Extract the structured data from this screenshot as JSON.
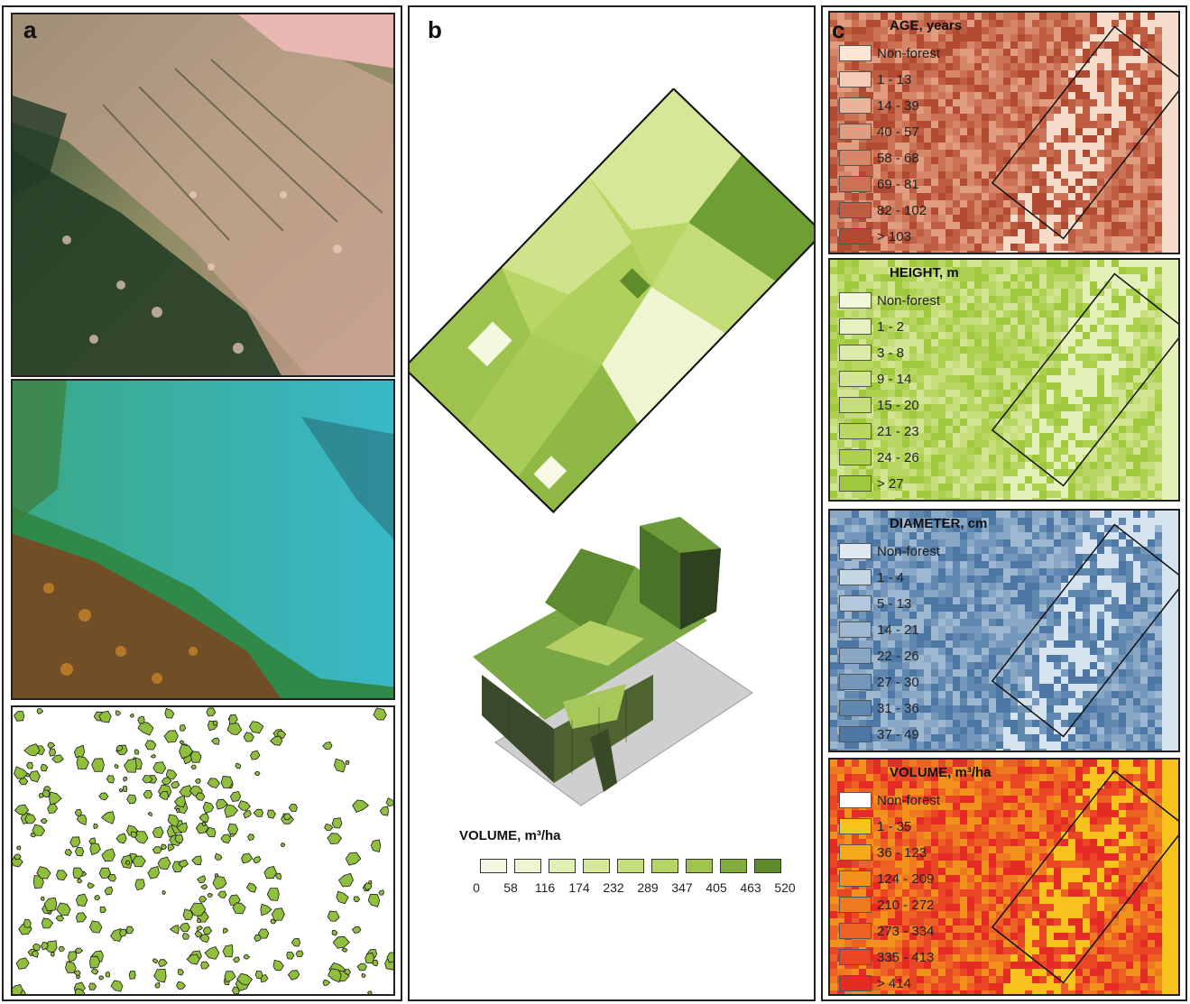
{
  "panels": {
    "a": {
      "label": "a"
    },
    "b": {
      "label": "b"
    },
    "c": {
      "label": "c"
    }
  },
  "volume_legend_b": {
    "title": "VOLUME, m³/ha",
    "ticks": [
      "0",
      "58",
      "116",
      "174",
      "232",
      "289",
      "347",
      "405",
      "463",
      "520"
    ],
    "colors": [
      "#f7f9e4",
      "#eef5cf",
      "#e2efb4",
      "#d5e899",
      "#c6df7d",
      "#b6d564",
      "#9ec44e",
      "#80ad3c",
      "#5e8c2a"
    ]
  },
  "legends": [
    {
      "id": "age",
      "title": "AGE, years",
      "items": [
        "Non-forest",
        "1 - 13",
        "14 - 39",
        "40 - 57",
        "58 - 68",
        "69 - 81",
        "82 - 102",
        "> 103"
      ],
      "colors": [
        "#fbe6d6",
        "#f4cbb4",
        "#ebb398",
        "#e19d80",
        "#d6876a",
        "#cb7155",
        "#bf5d42",
        "#b24a31"
      ],
      "map_base": "#d48a6c",
      "map_light": "#f6dccb"
    },
    {
      "id": "height",
      "title": "HEIGHT, m",
      "items": [
        "Non-forest",
        "1 - 2",
        "3 - 8",
        "9 - 14",
        "15 - 20",
        "21 - 23",
        "24 - 26",
        "> 27"
      ],
      "colors": [
        "#f2f7d8",
        "#e6f0c0",
        "#dcebab",
        "#d1e593",
        "#c5de7b",
        "#b9d765",
        "#add04f",
        "#a0c83c"
      ],
      "map_base": "#b3d45a",
      "map_light": "#e4f1b8"
    },
    {
      "id": "diameter",
      "title": "DIAMETER, cm",
      "items": [
        "Non-forest",
        "1 - 4",
        "5 - 13",
        "14 - 21",
        "22 - 26",
        "27 - 30",
        "31 - 36",
        "37 - 49"
      ],
      "colors": [
        "#dde8f1",
        "#c7d7e6",
        "#b3c8dc",
        "#9eb8d1",
        "#89a8c6",
        "#7497bb",
        "#6087b0",
        "#4d77a5"
      ],
      "map_base": "#6f92b8",
      "map_light": "#d5e3ee"
    },
    {
      "id": "volume",
      "title": "VOLUME, m³/ha",
      "items": [
        "Non-forest",
        "1 - 35",
        "36 - 123",
        "124 - 209",
        "210 - 272",
        "273 - 334",
        "335 - 413",
        "> 414"
      ],
      "colors": [
        "#ffffff",
        "#f7c51c",
        "#f5aa1c",
        "#f3911f",
        "#f07a22",
        "#ee6124",
        "#e94626",
        "#e42b26"
      ],
      "map_base": "#ee5a22",
      "map_light": "#f7c21e"
    }
  ]
}
